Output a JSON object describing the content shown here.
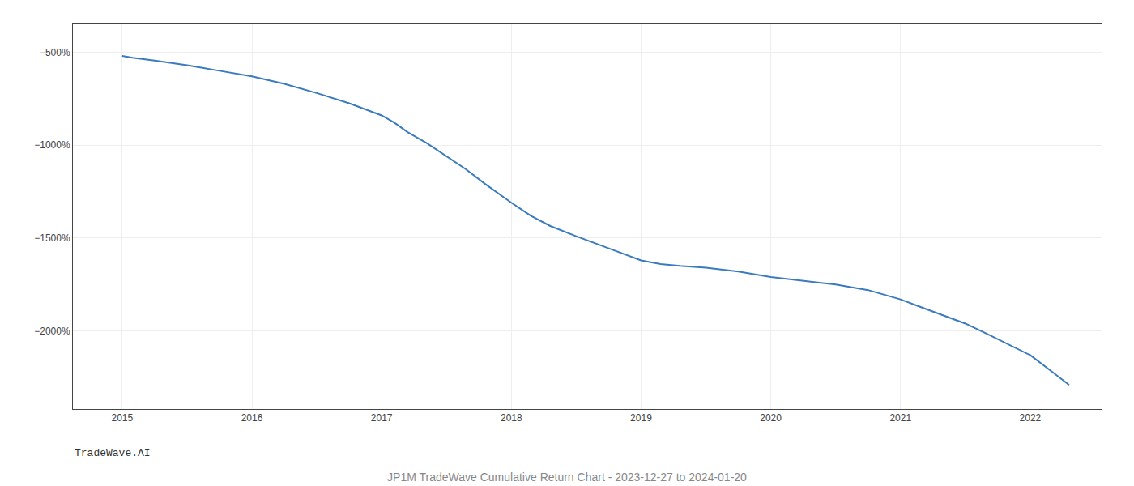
{
  "chart_data": {
    "type": "line",
    "title": "JP1M TradeWave Cumulative Return Chart - 2023-12-27 to 2024-01-20",
    "annotations": [
      "TradeWave.AI"
    ],
    "x": [
      2015.0,
      2015.08,
      2015.25,
      2015.5,
      2015.75,
      2016.0,
      2016.25,
      2016.5,
      2016.75,
      2017.0,
      2017.1,
      2017.2,
      2017.35,
      2017.5,
      2017.65,
      2017.8,
      2018.0,
      2018.15,
      2018.3,
      2018.5,
      2018.65,
      2018.8,
      2019.0,
      2019.15,
      2019.3,
      2019.5,
      2019.75,
      2020.0,
      2020.25,
      2020.5,
      2020.75,
      2021.0,
      2021.15,
      2021.3,
      2021.5,
      2021.65,
      2021.8,
      2022.0,
      2022.15,
      2022.3
    ],
    "values": [
      -520,
      -530,
      -545,
      -570,
      -600,
      -630,
      -670,
      -720,
      -775,
      -840,
      -880,
      -930,
      -990,
      -1060,
      -1130,
      -1210,
      -1310,
      -1380,
      -1435,
      -1490,
      -1530,
      -1570,
      -1620,
      -1640,
      -1650,
      -1660,
      -1680,
      -1710,
      -1730,
      -1750,
      -1780,
      -1830,
      -1870,
      -1910,
      -1960,
      -2010,
      -2060,
      -2130,
      -2210,
      -2290
    ],
    "color": "#3a7abf",
    "xlim": [
      2014.62,
      2022.55
    ],
    "xticks": [
      2015,
      2016,
      2017,
      2018,
      2019,
      2020,
      2021,
      2022
    ],
    "ylim": [
      -2420,
      -350
    ],
    "yticks": [
      {
        "value": -500,
        "label": "−500%"
      },
      {
        "value": -1000,
        "label": "−1000%"
      },
      {
        "value": -1500,
        "label": "−1500%"
      },
      {
        "value": -2000,
        "label": "−2000%"
      }
    ],
    "grid": true
  }
}
